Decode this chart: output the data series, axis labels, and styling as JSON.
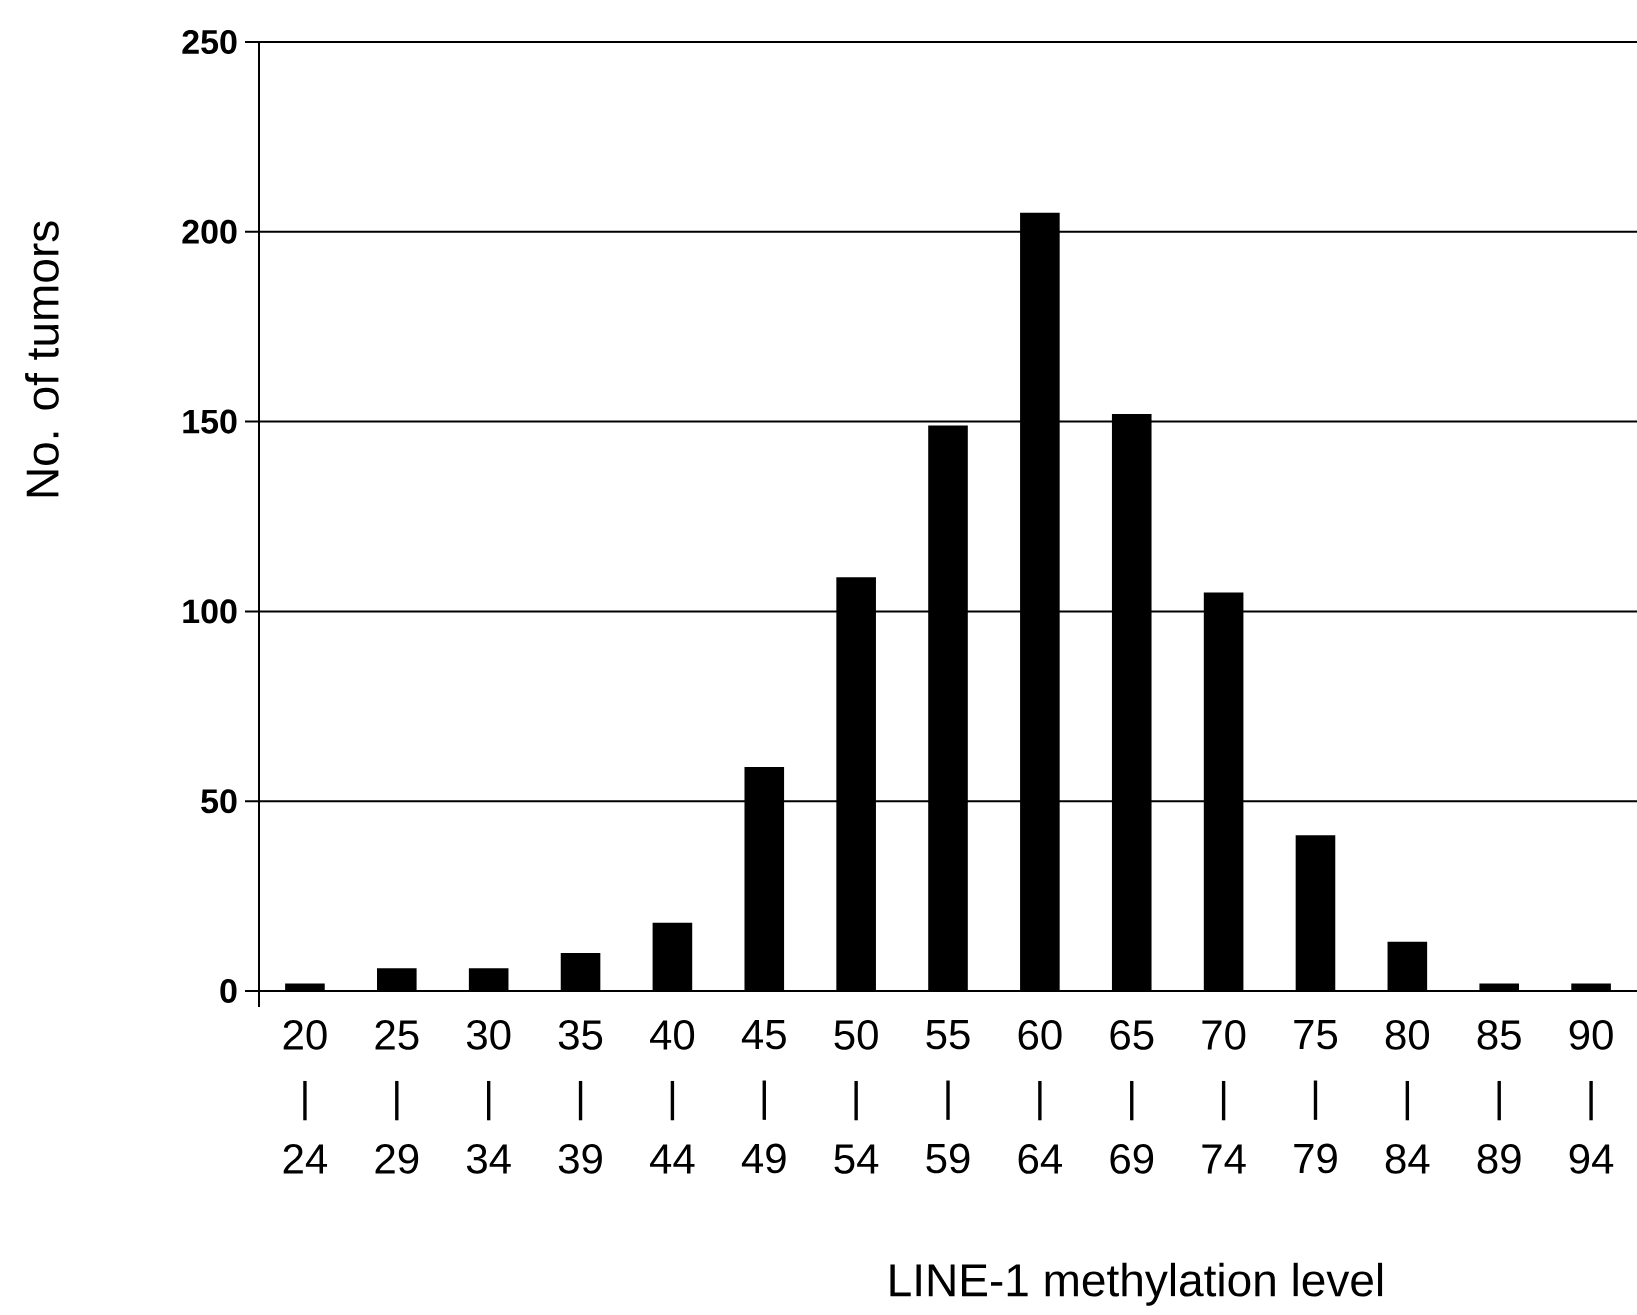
{
  "chart_data": {
    "type": "bar",
    "xlabel": "LINE-1 methylation level",
    "ylabel": "No. of tumors",
    "categories": [
      "20 | 24",
      "25 | 29",
      "30 | 34",
      "35 | 39",
      "40 | 44",
      "45 | 49",
      "50 | 54",
      "55 | 59",
      "60 | 64",
      "65 | 69",
      "70 | 74",
      "75 | 79",
      "80 | 84",
      "85 | 89",
      "90 | 94"
    ],
    "values": [
      2,
      6,
      6,
      10,
      18,
      59,
      109,
      149,
      205,
      152,
      105,
      41,
      13,
      2,
      2
    ],
    "color": "#000000",
    "ylim": [
      0,
      250
    ],
    "yticks": [
      0,
      50,
      100,
      150,
      200,
      250
    ],
    "grid": "y"
  }
}
